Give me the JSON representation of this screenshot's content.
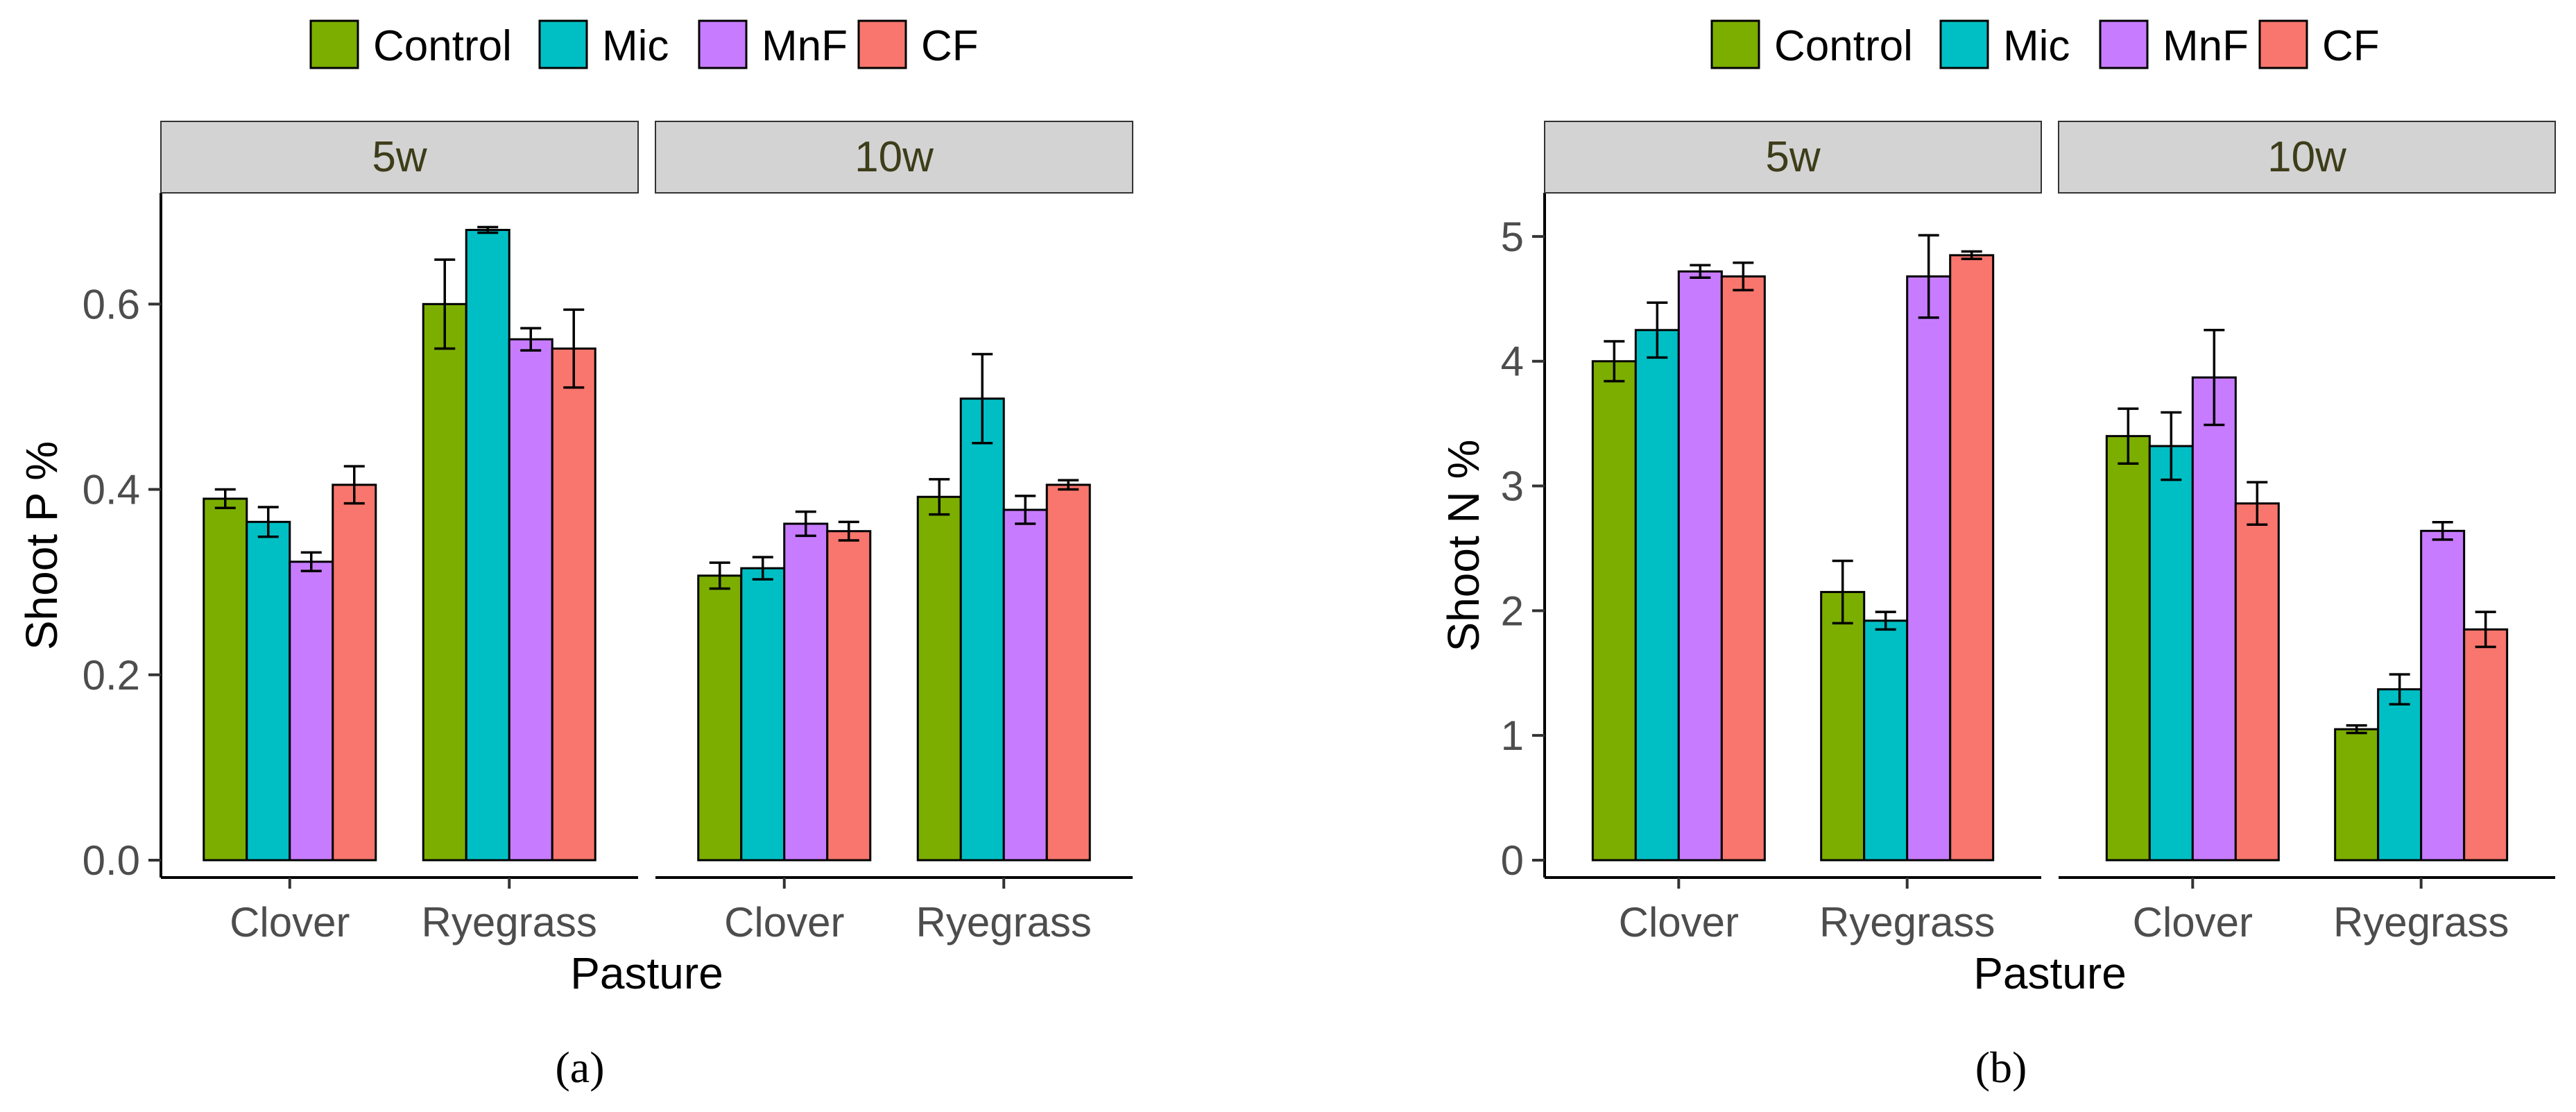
{
  "figure_labels": [
    "(a)",
    "(b)"
  ],
  "colors": {
    "Control": "#7cae00",
    "Mic": "#00bfc4",
    "MnF": "#c77cff",
    "CF": "#f8766d",
    "strip_fill": "#d3d3d3",
    "strip_text": "#3d3d1a"
  },
  "chart_data": [
    {
      "type": "bar",
      "panel_label": "(a)",
      "ylabel": "Shoot P %",
      "xlabel": "Pasture",
      "ylim": [
        0,
        0.72
      ],
      "yticks": [
        0.0,
        0.2,
        0.4,
        0.6
      ],
      "ytick_labels": [
        "0.0",
        "0.2",
        "0.4",
        "0.6"
      ],
      "legend": [
        "Control",
        "Mic",
        "MnF",
        "CF"
      ],
      "legend_position": "top",
      "grid": false,
      "facets": [
        {
          "label": "5w",
          "categories": [
            "Clover",
            "Ryegrass"
          ],
          "series": [
            {
              "name": "Control",
              "values": [
                0.39,
                0.6
              ],
              "errors": [
                0.01,
                0.048
              ]
            },
            {
              "name": "Mic",
              "values": [
                0.365,
                0.68
              ],
              "errors": [
                0.016,
                0.003
              ]
            },
            {
              "name": "MnF",
              "values": [
                0.322,
                0.562
              ],
              "errors": [
                0.01,
                0.012
              ]
            },
            {
              "name": "CF",
              "values": [
                0.405,
                0.552
              ],
              "errors": [
                0.02,
                0.042
              ]
            }
          ]
        },
        {
          "label": "10w",
          "categories": [
            "Clover",
            "Ryegrass"
          ],
          "series": [
            {
              "name": "Control",
              "values": [
                0.307,
                0.392
              ],
              "errors": [
                0.014,
                0.019
              ]
            },
            {
              "name": "Mic",
              "values": [
                0.315,
                0.498
              ],
              "errors": [
                0.012,
                0.048
              ]
            },
            {
              "name": "MnF",
              "values": [
                0.363,
                0.378
              ],
              "errors": [
                0.013,
                0.015
              ]
            },
            {
              "name": "CF",
              "values": [
                0.355,
                0.405
              ],
              "errors": [
                0.01,
                0.005
              ]
            }
          ]
        }
      ]
    },
    {
      "type": "bar",
      "panel_label": "(b)",
      "ylabel": "Shoot N %",
      "xlabel": "Pasture",
      "ylim": [
        0,
        5.35
      ],
      "yticks": [
        0,
        1,
        2,
        3,
        4,
        5
      ],
      "ytick_labels": [
        "0",
        "1",
        "2",
        "3",
        "4",
        "5"
      ],
      "legend": [
        "Control",
        "Mic",
        "MnF",
        "CF"
      ],
      "legend_position": "top",
      "grid": false,
      "facets": [
        {
          "label": "5w",
          "categories": [
            "Clover",
            "Ryegrass"
          ],
          "series": [
            {
              "name": "Control",
              "values": [
                4.0,
                2.15
              ],
              "errors": [
                0.16,
                0.25
              ]
            },
            {
              "name": "Mic",
              "values": [
                4.25,
                1.92
              ],
              "errors": [
                0.22,
                0.07
              ]
            },
            {
              "name": "MnF",
              "values": [
                4.72,
                4.68
              ],
              "errors": [
                0.05,
                0.33
              ]
            },
            {
              "name": "CF",
              "values": [
                4.68,
                4.85
              ],
              "errors": [
                0.11,
                0.03
              ]
            }
          ]
        },
        {
          "label": "10w",
          "categories": [
            "Clover",
            "Ryegrass"
          ],
          "series": [
            {
              "name": "Control",
              "values": [
                3.4,
                1.05
              ],
              "errors": [
                0.22,
                0.03
              ]
            },
            {
              "name": "Mic",
              "values": [
                3.32,
                1.37
              ],
              "errors": [
                0.27,
                0.12
              ]
            },
            {
              "name": "MnF",
              "values": [
                3.87,
                2.64
              ],
              "errors": [
                0.38,
                0.07
              ]
            },
            {
              "name": "CF",
              "values": [
                2.86,
                1.85
              ],
              "errors": [
                0.17,
                0.14
              ]
            }
          ]
        }
      ]
    }
  ]
}
